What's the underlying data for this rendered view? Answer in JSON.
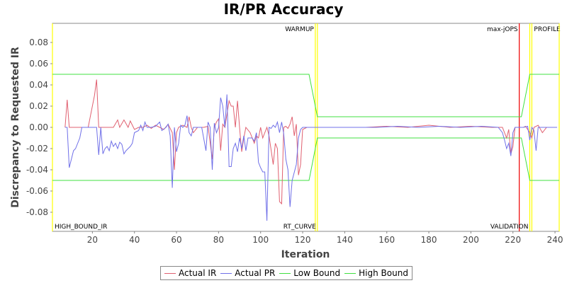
{
  "chart_data": {
    "type": "line",
    "title": "IR/PR Accuracy",
    "xlabel": "Iteration",
    "ylabel": "Discrepancy to Requested IR",
    "xlim": [
      1,
      242
    ],
    "ylim": [
      -0.098,
      0.098
    ],
    "x_ticks": [
      20,
      40,
      60,
      80,
      100,
      120,
      140,
      160,
      180,
      200,
      220,
      240
    ],
    "y_ticks": [
      -0.08,
      -0.06,
      -0.04,
      -0.02,
      0.0,
      0.02,
      0.04,
      0.06,
      0.08
    ],
    "y_tick_labels": [
      "-0.08",
      "-0.06",
      "-0.04",
      "-0.02",
      "0.00",
      "0.02",
      "0.04",
      "0.06",
      "0.08"
    ],
    "grid": false,
    "legend_position": "bottom",
    "series": [
      {
        "name": "Actual IR",
        "color": "#e06070",
        "points": [
          [
            7,
            0
          ],
          [
            8,
            0.026
          ],
          [
            9,
            0
          ],
          [
            12,
            0
          ],
          [
            15,
            0
          ],
          [
            18,
            0
          ],
          [
            21,
            0.03
          ],
          [
            22,
            0.045
          ],
          [
            23,
            0
          ],
          [
            25,
            0
          ],
          [
            30,
            0
          ],
          [
            32,
            0.007
          ],
          [
            33,
            0
          ],
          [
            35,
            0.007
          ],
          [
            37,
            0
          ],
          [
            38,
            0.006
          ],
          [
            40,
            -0.002
          ],
          [
            42,
            0
          ],
          [
            44,
            0
          ],
          [
            46,
            0.002
          ],
          [
            48,
            -0.001
          ],
          [
            50,
            0.002
          ],
          [
            52,
            0
          ],
          [
            54,
            -0.002
          ],
          [
            56,
            0.003
          ],
          [
            58,
            -0.005
          ],
          [
            59,
            -0.04
          ],
          [
            60,
            -0.005
          ],
          [
            61,
            0
          ],
          [
            63,
            0.002
          ],
          [
            65,
            0
          ],
          [
            66,
            0.01
          ],
          [
            67,
            0
          ],
          [
            68,
            -0.005
          ],
          [
            70,
            0
          ],
          [
            73,
            0
          ],
          [
            75,
            0.001
          ],
          [
            77,
            -0.03
          ],
          [
            78,
            0
          ],
          [
            79,
            0.005
          ],
          [
            80,
            0.008
          ],
          [
            81,
            -0.022
          ],
          [
            82,
            0.003
          ],
          [
            83,
            0
          ],
          [
            85,
            0.025
          ],
          [
            86,
            0.02
          ],
          [
            87,
            0.02
          ],
          [
            88,
            0
          ],
          [
            89,
            0.025
          ],
          [
            90,
            0
          ],
          [
            91,
            -0.023
          ],
          [
            92,
            -0.01
          ],
          [
            93,
            0
          ],
          [
            95,
            -0.005
          ],
          [
            97,
            -0.015
          ],
          [
            98,
            -0.008
          ],
          [
            99,
            -0.01
          ],
          [
            100,
            0
          ],
          [
            101,
            -0.01
          ],
          [
            103,
            0
          ],
          [
            104,
            -0.008
          ],
          [
            106,
            -0.035
          ],
          [
            107,
            -0.015
          ],
          [
            108,
            -0.02
          ],
          [
            109,
            -0.07
          ],
          [
            110,
            -0.072
          ],
          [
            111,
            0
          ],
          [
            112,
            0.001
          ],
          [
            113,
            -0.001
          ],
          [
            114,
            0.003
          ],
          [
            115,
            0.01
          ],
          [
            116,
            -0.008
          ],
          [
            117,
            0.003
          ],
          [
            118,
            -0.045
          ],
          [
            119,
            -0.035
          ],
          [
            120,
            -0.002
          ],
          [
            122,
            0
          ],
          [
            125,
            0
          ],
          [
            130,
            0
          ],
          [
            140,
            0
          ],
          [
            150,
            0
          ],
          [
            160,
            0.001
          ],
          [
            170,
            0
          ],
          [
            180,
            0.002
          ],
          [
            190,
            0
          ],
          [
            200,
            0.001
          ],
          [
            210,
            0
          ],
          [
            215,
            0
          ],
          [
            217,
            -0.01
          ],
          [
            218,
            -0.002
          ],
          [
            219,
            -0.025
          ],
          [
            220,
            -0.018
          ],
          [
            221,
            0
          ],
          [
            223,
            0
          ],
          [
            225,
            0
          ],
          [
            226,
            0.001
          ],
          [
            228,
            -0.005
          ],
          [
            229,
            -0.01
          ],
          [
            230,
            0
          ],
          [
            232,
            0.002
          ],
          [
            234,
            -0.005
          ],
          [
            236,
            0
          ],
          [
            241,
            0
          ]
        ]
      },
      {
        "name": "Actual PR",
        "color": "#7070e8",
        "points": [
          [
            7,
            0
          ],
          [
            8,
            0
          ],
          [
            9,
            -0.038
          ],
          [
            10,
            -0.03
          ],
          [
            11,
            -0.022
          ],
          [
            12,
            -0.02
          ],
          [
            13,
            -0.015
          ],
          [
            14,
            -0.01
          ],
          [
            15,
            0
          ],
          [
            17,
            0
          ],
          [
            19,
            0
          ],
          [
            20,
            0
          ],
          [
            21,
            0
          ],
          [
            22,
            0
          ],
          [
            23,
            -0.026
          ],
          [
            24,
            0
          ],
          [
            25,
            -0.025
          ],
          [
            26,
            -0.02
          ],
          [
            27,
            -0.018
          ],
          [
            28,
            -0.022
          ],
          [
            29,
            -0.013
          ],
          [
            30,
            -0.018
          ],
          [
            31,
            -0.015
          ],
          [
            32,
            -0.02
          ],
          [
            33,
            -0.014
          ],
          [
            34,
            -0.016
          ],
          [
            35,
            -0.025
          ],
          [
            36,
            -0.022
          ],
          [
            37,
            -0.02
          ],
          [
            38,
            -0.018
          ],
          [
            39,
            -0.015
          ],
          [
            40,
            -0.005
          ],
          [
            42,
            -0.003
          ],
          [
            43,
            0.002
          ],
          [
            44,
            -0.003
          ],
          [
            45,
            0.005
          ],
          [
            46,
            0
          ],
          [
            48,
            0
          ],
          [
            50,
            0.001
          ],
          [
            52,
            0.005
          ],
          [
            53,
            -0.003
          ],
          [
            55,
            0
          ],
          [
            56,
            0.003
          ],
          [
            57,
            -0.008
          ],
          [
            58,
            -0.057
          ],
          [
            59,
            0
          ],
          [
            60,
            -0.023
          ],
          [
            61,
            -0.015
          ],
          [
            62,
            0.002
          ],
          [
            63,
            0
          ],
          [
            64,
            0.002
          ],
          [
            65,
            0.011
          ],
          [
            66,
            -0.005
          ],
          [
            67,
            -0.008
          ],
          [
            68,
            0
          ],
          [
            70,
            0
          ],
          [
            72,
            0
          ],
          [
            74,
            -0.022
          ],
          [
            75,
            0.005
          ],
          [
            76,
            0
          ],
          [
            77,
            -0.04
          ],
          [
            78,
            0.004
          ],
          [
            79,
            -0.005
          ],
          [
            80,
            0
          ],
          [
            81,
            0.028
          ],
          [
            82,
            0.02
          ],
          [
            83,
            0
          ],
          [
            84,
            0.031
          ],
          [
            85,
            -0.037
          ],
          [
            86,
            -0.037
          ],
          [
            87,
            -0.02
          ],
          [
            88,
            -0.015
          ],
          [
            89,
            -0.023
          ],
          [
            90,
            -0.01
          ],
          [
            91,
            -0.02
          ],
          [
            92,
            -0.008
          ],
          [
            93,
            -0.022
          ],
          [
            94,
            -0.01
          ],
          [
            95,
            -0.01
          ],
          [
            96,
            -0.01
          ],
          [
            97,
            -0.013
          ],
          [
            98,
            -0.005
          ],
          [
            99,
            -0.033
          ],
          [
            100,
            -0.038
          ],
          [
            101,
            -0.042
          ],
          [
            102,
            -0.042
          ],
          [
            103,
            -0.088
          ],
          [
            104,
            0
          ],
          [
            105,
            -0.001
          ],
          [
            106,
            0.002
          ],
          [
            107,
            0
          ],
          [
            108,
            0.005
          ],
          [
            109,
            -0.005
          ],
          [
            110,
            0.005
          ],
          [
            111,
            -0.006
          ],
          [
            112,
            -0.03
          ],
          [
            113,
            -0.04
          ],
          [
            114,
            -0.075
          ],
          [
            115,
            -0.05
          ],
          [
            117,
            -0.035
          ],
          [
            118,
            -0.01
          ],
          [
            119,
            -0.002
          ],
          [
            120,
            0
          ],
          [
            125,
            0
          ],
          [
            135,
            0
          ],
          [
            145,
            0
          ],
          [
            155,
            0
          ],
          [
            165,
            0.001
          ],
          [
            175,
            0
          ],
          [
            185,
            0.001
          ],
          [
            195,
            0
          ],
          [
            205,
            0.001
          ],
          [
            213,
            0
          ],
          [
            215,
            -0.005
          ],
          [
            216,
            -0.012
          ],
          [
            217,
            -0.02
          ],
          [
            218,
            -0.015
          ],
          [
            219,
            -0.027
          ],
          [
            220,
            -0.005
          ],
          [
            221,
            0
          ],
          [
            223,
            0
          ],
          [
            225,
            0
          ],
          [
            227,
            0.001
          ],
          [
            228,
            -0.012
          ],
          [
            229,
            0
          ],
          [
            230,
            -0.003
          ],
          [
            231,
            -0.022
          ],
          [
            232,
            0
          ],
          [
            234,
            0
          ],
          [
            236,
            0
          ],
          [
            238,
            0
          ],
          [
            241,
            0
          ]
        ]
      },
      {
        "name": "Low Bound",
        "color": "#40e040",
        "points": [
          [
            1,
            -0.05
          ],
          [
            123,
            -0.05
          ],
          [
            127,
            -0.01
          ],
          [
            224,
            -0.01
          ],
          [
            228,
            -0.05
          ],
          [
            242,
            -0.05
          ]
        ]
      },
      {
        "name": "High Bound",
        "color": "#40e040",
        "points": [
          [
            1,
            0.05
          ],
          [
            123,
            0.05
          ],
          [
            127,
            0.01
          ],
          [
            224,
            0.01
          ],
          [
            228,
            0.05
          ],
          [
            242,
            0.05
          ]
        ]
      }
    ],
    "phase_markers": [
      {
        "x": 1,
        "color": "#ffff00",
        "label": "HIGH_BOUND_IR",
        "label_pos": "bottom",
        "align": "start"
      },
      {
        "x": 126,
        "color": "#ffff00",
        "label": "WARMUP",
        "label_pos": "top",
        "align": "end"
      },
      {
        "x": 127,
        "color": "#ffff00",
        "label": "RT_CURVE",
        "label_pos": "bottom",
        "align": "end"
      },
      {
        "x": 223,
        "color": "#ee0000",
        "label": "max-jOPS",
        "label_pos": "top",
        "align": "end"
      },
      {
        "x": 228,
        "color": "#ffff00",
        "label": "VALIDATION",
        "label_pos": "bottom",
        "align": "end"
      },
      {
        "x": 229,
        "color": "#ffff00",
        "label": "PROFILE",
        "label_pos": "top",
        "align": "start"
      },
      {
        "x": 242,
        "color": "#ffff00",
        "label": "",
        "label_pos": "none",
        "align": "start"
      }
    ]
  },
  "legend": {
    "items": [
      {
        "label": "Actual IR",
        "color": "#e06070"
      },
      {
        "label": "Actual PR",
        "color": "#7070e8"
      },
      {
        "label": "Low Bound",
        "color": "#40e040"
      },
      {
        "label": "High Bound",
        "color": "#40e040"
      }
    ]
  }
}
